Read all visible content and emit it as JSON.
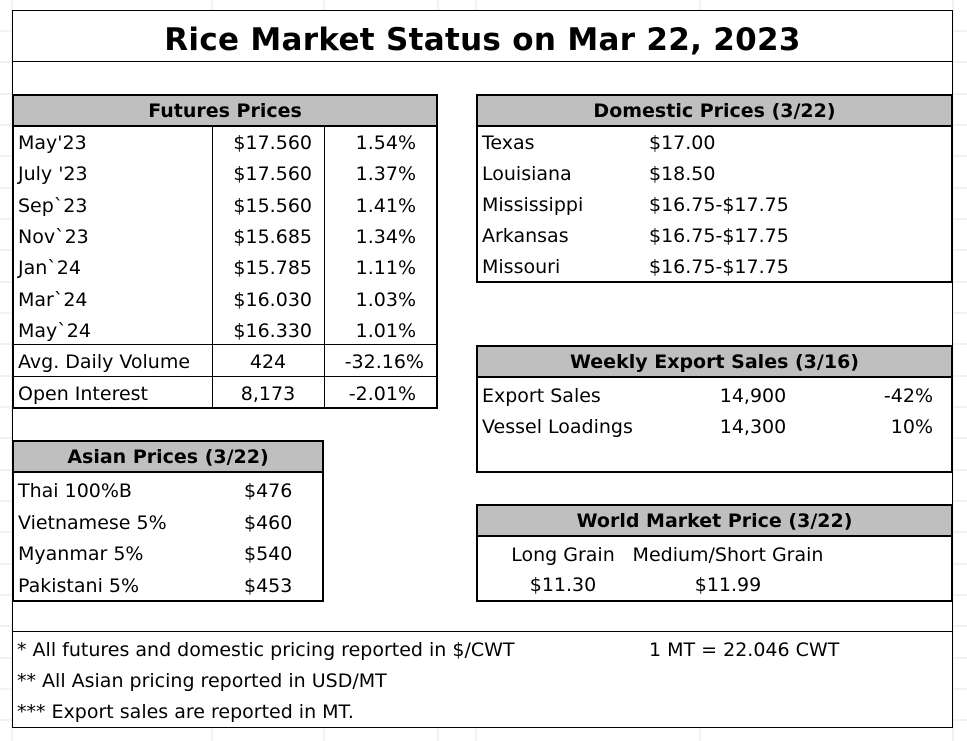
{
  "title": "Rice Market Status on Mar 22, 2023",
  "futures": {
    "header": "Futures Prices",
    "rows": [
      {
        "label": "May'23",
        "price": "$17.560",
        "change": "1.54%"
      },
      {
        "label": "July '23",
        "price": "$17.560",
        "change": "1.37%"
      },
      {
        "label": "Sep`23",
        "price": "$15.560",
        "change": "1.41%"
      },
      {
        "label": "Nov`23",
        "price": "$15.685",
        "change": "1.34%"
      },
      {
        "label": "Jan`24",
        "price": "$15.785",
        "change": "1.11%"
      },
      {
        "label": "Mar`24",
        "price": "$16.030",
        "change": "1.03%"
      },
      {
        "label": "May`24",
        "price": "$16.330",
        "change": "1.01%"
      }
    ],
    "volume": {
      "label": "Avg. Daily Volume",
      "value": "424",
      "change": "-32.16%"
    },
    "open_interest": {
      "label": "Open Interest",
      "value": "8,173",
      "change": "-2.01%"
    }
  },
  "domestic": {
    "header": "Domestic Prices (3/22)",
    "rows": [
      {
        "label": "Texas",
        "price": "$17.00"
      },
      {
        "label": "Louisiana",
        "price": "$18.50"
      },
      {
        "label": "Mississippi",
        "price": "$16.75-$17.75"
      },
      {
        "label": "Arkansas",
        "price": "$16.75-$17.75"
      },
      {
        "label": "Missouri",
        "price": "$16.75-$17.75"
      }
    ]
  },
  "export": {
    "header": "Weekly Export Sales (3/16)",
    "rows": [
      {
        "label": "Export Sales",
        "value": "14,900",
        "change": "-42%"
      },
      {
        "label": "Vessel Loadings",
        "value": "14,300",
        "change": "10%"
      }
    ]
  },
  "asian": {
    "header": "Asian Prices (3/22)",
    "rows": [
      {
        "label": "Thai 100%B",
        "price": "$476"
      },
      {
        "label": "Vietnamese 5%",
        "price": "$460"
      },
      {
        "label": "Myanmar 5%",
        "price": "$540"
      },
      {
        "label": "Pakistani 5%",
        "price": "$453"
      }
    ]
  },
  "world": {
    "header": "World Market Price (3/22)",
    "col1_label": "Long Grain",
    "col2_label": "Medium/Short Grain",
    "col1_value": "$11.30",
    "col2_value": "$11.99"
  },
  "notes": {
    "line1": "* All futures and domestic pricing reported in $/CWT",
    "line1_right": "1 MT = 22.046 CWT",
    "line2": "** All Asian pricing reported in USD/MT",
    "line3": "*** Export sales are reported in MT."
  }
}
